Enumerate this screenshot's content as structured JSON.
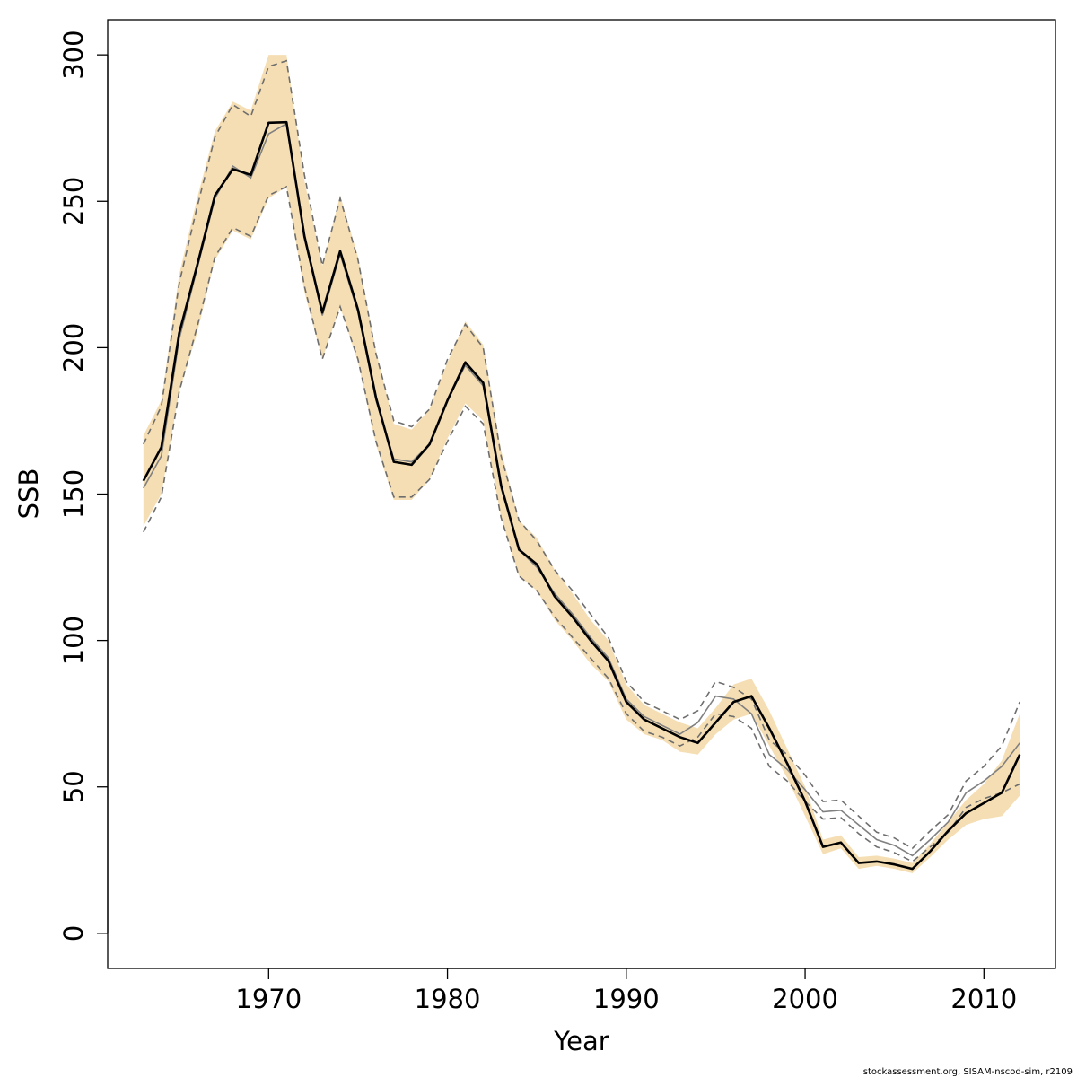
{
  "chart_data": {
    "type": "line",
    "title": "",
    "xlabel": "Year",
    "ylabel": "SSB",
    "xlim": [
      1961,
      2014
    ],
    "ylim": [
      -12,
      312
    ],
    "x_ticks": [
      1970,
      1980,
      1990,
      2000,
      2010
    ],
    "y_ticks": [
      0,
      50,
      100,
      150,
      200,
      250,
      300
    ],
    "grid": false,
    "legend": "none",
    "colors": {
      "band": "#f5deb3",
      "estimate": "#000000",
      "reference": "#808080",
      "reference_bounds": "#6e6e6e"
    },
    "x": [
      1963,
      1964,
      1965,
      1966,
      1967,
      1968,
      1969,
      1970,
      1971,
      1972,
      1973,
      1974,
      1975,
      1976,
      1977,
      1978,
      1979,
      1980,
      1981,
      1982,
      1983,
      1984,
      1985,
      1986,
      1987,
      1988,
      1989,
      1990,
      1991,
      1992,
      1993,
      1994,
      1995,
      1996,
      1997,
      1998,
      1999,
      2000,
      2001,
      2002,
      2003,
      2004,
      2005,
      2006,
      2007,
      2008,
      2009,
      2010,
      2011,
      2012
    ],
    "series": [
      {
        "role": "estimate",
        "values": [
          154.5,
          166,
          205,
          228,
          252,
          261,
          259,
          276.8,
          277,
          238,
          212,
          233,
          213,
          183,
          161,
          160,
          167,
          182,
          195,
          188,
          153,
          131,
          126,
          115,
          108,
          100,
          93,
          79,
          73,
          70,
          67,
          65,
          72,
          79,
          81,
          70,
          58,
          45,
          29.5,
          31,
          24,
          24.5,
          23.5,
          22,
          28,
          35,
          41,
          44.5,
          48,
          61
        ],
        "lower": [
          139,
          150,
          185,
          205,
          230,
          240,
          237,
          251,
          255,
          219,
          196,
          214,
          195,
          167,
          148,
          148,
          155,
          169,
          181,
          175,
          142,
          122,
          117,
          107,
          100,
          92,
          86,
          73,
          68,
          66,
          62,
          61,
          68,
          73,
          75,
          64,
          53,
          40,
          27,
          29,
          22,
          23,
          22,
          20.5,
          26,
          32,
          37,
          39,
          40,
          47
        ],
        "upper": [
          170,
          182,
          225,
          251,
          274,
          284,
          281,
          300,
          300,
          257,
          228,
          252,
          231,
          199,
          174,
          172,
          179,
          195,
          209,
          201,
          165,
          141,
          135,
          124,
          116,
          107,
          100,
          85,
          78,
          75,
          72,
          70,
          77,
          85,
          87,
          76,
          63,
          50,
          32,
          33.5,
          26,
          26.5,
          25.5,
          24,
          30.5,
          38,
          45.5,
          51,
          59,
          75
        ]
      },
      {
        "role": "reference",
        "values": [
          152,
          163,
          203,
          227,
          251,
          262,
          258,
          273,
          276.5,
          239,
          211,
          232,
          212,
          182,
          162,
          161,
          167,
          182,
          194,
          187,
          152,
          131,
          125,
          116,
          109,
          101,
          94,
          80,
          74,
          71,
          68,
          72,
          81,
          80,
          75,
          61,
          56,
          49,
          41.5,
          42,
          37,
          32,
          30,
          26.5,
          32,
          38,
          48,
          52,
          57,
          65
        ],
        "lower": [
          137,
          149,
          185,
          207,
          231,
          241,
          238,
          252,
          255,
          221,
          196,
          214,
          196,
          168,
          149,
          149,
          155,
          168,
          180,
          174,
          142,
          122,
          117,
          108,
          101,
          94,
          87,
          75,
          69,
          67,
          64,
          67,
          75,
          74,
          70,
          57,
          52,
          45,
          39,
          39.5,
          34,
          29.5,
          27.5,
          24.5,
          29.5,
          34.5,
          43,
          46,
          48,
          51
        ],
        "upper": [
          167,
          180,
          222,
          248,
          272,
          283,
          279,
          296,
          298,
          259,
          228,
          251,
          230,
          198,
          175,
          173,
          179,
          196,
          208,
          200,
          163,
          141,
          134,
          124,
          117,
          109,
          101,
          86,
          79,
          76,
          73,
          76,
          86,
          84,
          80,
          66,
          61,
          54,
          45,
          45.5,
          40,
          34.5,
          32.5,
          29,
          35,
          40.5,
          52,
          57,
          64,
          79
        ]
      }
    ]
  },
  "footer": {
    "credit": "stockassessment.org, SISAM-nscod-sim, r2109"
  }
}
